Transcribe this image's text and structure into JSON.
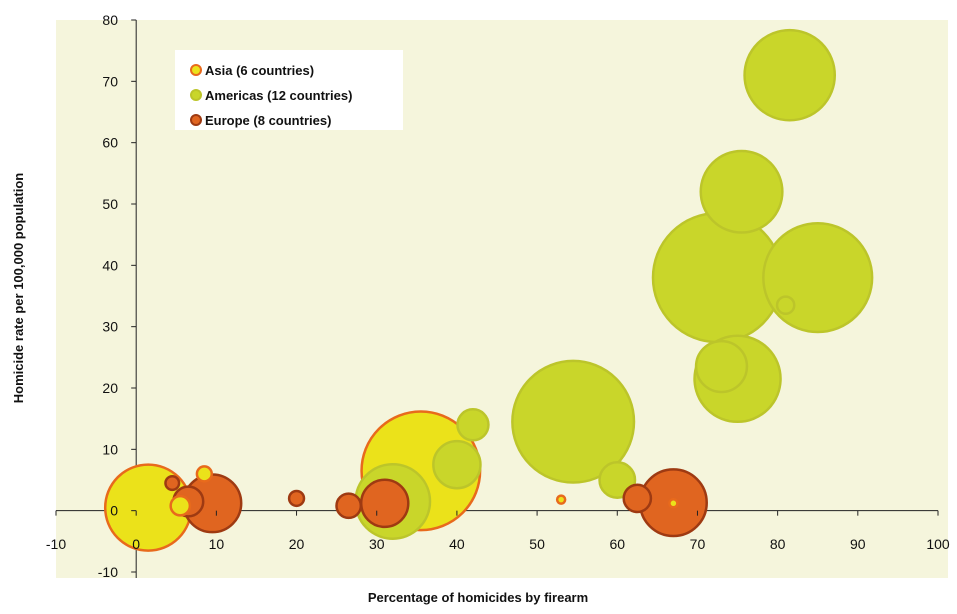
{
  "chart_data": {
    "type": "scatter",
    "title": "",
    "xlabel": "Percentage of homicides by firearm",
    "ylabel": "Homicide rate per 100,000 population",
    "xlim": [
      -10,
      100
    ],
    "ylim": [
      -10,
      80
    ],
    "x_ticks": [
      -10,
      0,
      10,
      20,
      30,
      40,
      50,
      60,
      70,
      80,
      90,
      100
    ],
    "y_ticks": [
      -10,
      0,
      10,
      20,
      30,
      40,
      50,
      60,
      70,
      80
    ],
    "grid": false,
    "legend_position": "top-left",
    "plot_background": "#F5F5DC",
    "series": [
      {
        "name": "Asia (6 countries)",
        "fill": "#EBE21A",
        "stroke": "#E86A1C",
        "points": [
          {
            "x": 1.5,
            "y": 0.5,
            "size": 100
          },
          {
            "x": 5.5,
            "y": 0.8,
            "size": 5
          },
          {
            "x": 8.5,
            "y": 6,
            "size": 3
          },
          {
            "x": 35.5,
            "y": 6.5,
            "size": 190
          },
          {
            "x": 53,
            "y": 1.8,
            "size": 0.2
          },
          {
            "x": 67,
            "y": 1.2,
            "size": 0.5
          }
        ]
      },
      {
        "name": "Americas (12 countries)",
        "fill": "#C9D62A",
        "stroke": "#BCC52A",
        "points": [
          {
            "x": 32,
            "y": 1.5,
            "size": 75
          },
          {
            "x": 40,
            "y": 7.5,
            "size": 30
          },
          {
            "x": 42,
            "y": 14,
            "size": 13
          },
          {
            "x": 54.5,
            "y": 14.5,
            "size": 200
          },
          {
            "x": 60,
            "y": 5,
            "size": 17
          },
          {
            "x": 72.5,
            "y": 38,
            "size": 225
          },
          {
            "x": 73,
            "y": 23.5,
            "size": 35
          },
          {
            "x": 75,
            "y": 21.5,
            "size": 100
          },
          {
            "x": 75.5,
            "y": 52,
            "size": 90
          },
          {
            "x": 81.5,
            "y": 71,
            "size": 110
          },
          {
            "x": 81,
            "y": 33.5,
            "size": 4
          },
          {
            "x": 85,
            "y": 38,
            "size": 160
          }
        ]
      },
      {
        "name": "Europe (8 countries)",
        "fill": "#E06520",
        "stroke": "#9E3A12",
        "points": [
          {
            "x": 4.5,
            "y": 4.5,
            "size": 2.5
          },
          {
            "x": 6.5,
            "y": 1.5,
            "size": 12
          },
          {
            "x": 9.5,
            "y": 1.2,
            "size": 45
          },
          {
            "x": 20,
            "y": 2,
            "size": 3
          },
          {
            "x": 26.5,
            "y": 0.8,
            "size": 8
          },
          {
            "x": 31,
            "y": 1.2,
            "size": 30
          },
          {
            "x": 62.5,
            "y": 2,
            "size": 10
          },
          {
            "x": 67,
            "y": 1.3,
            "size": 60
          }
        ]
      }
    ]
  }
}
